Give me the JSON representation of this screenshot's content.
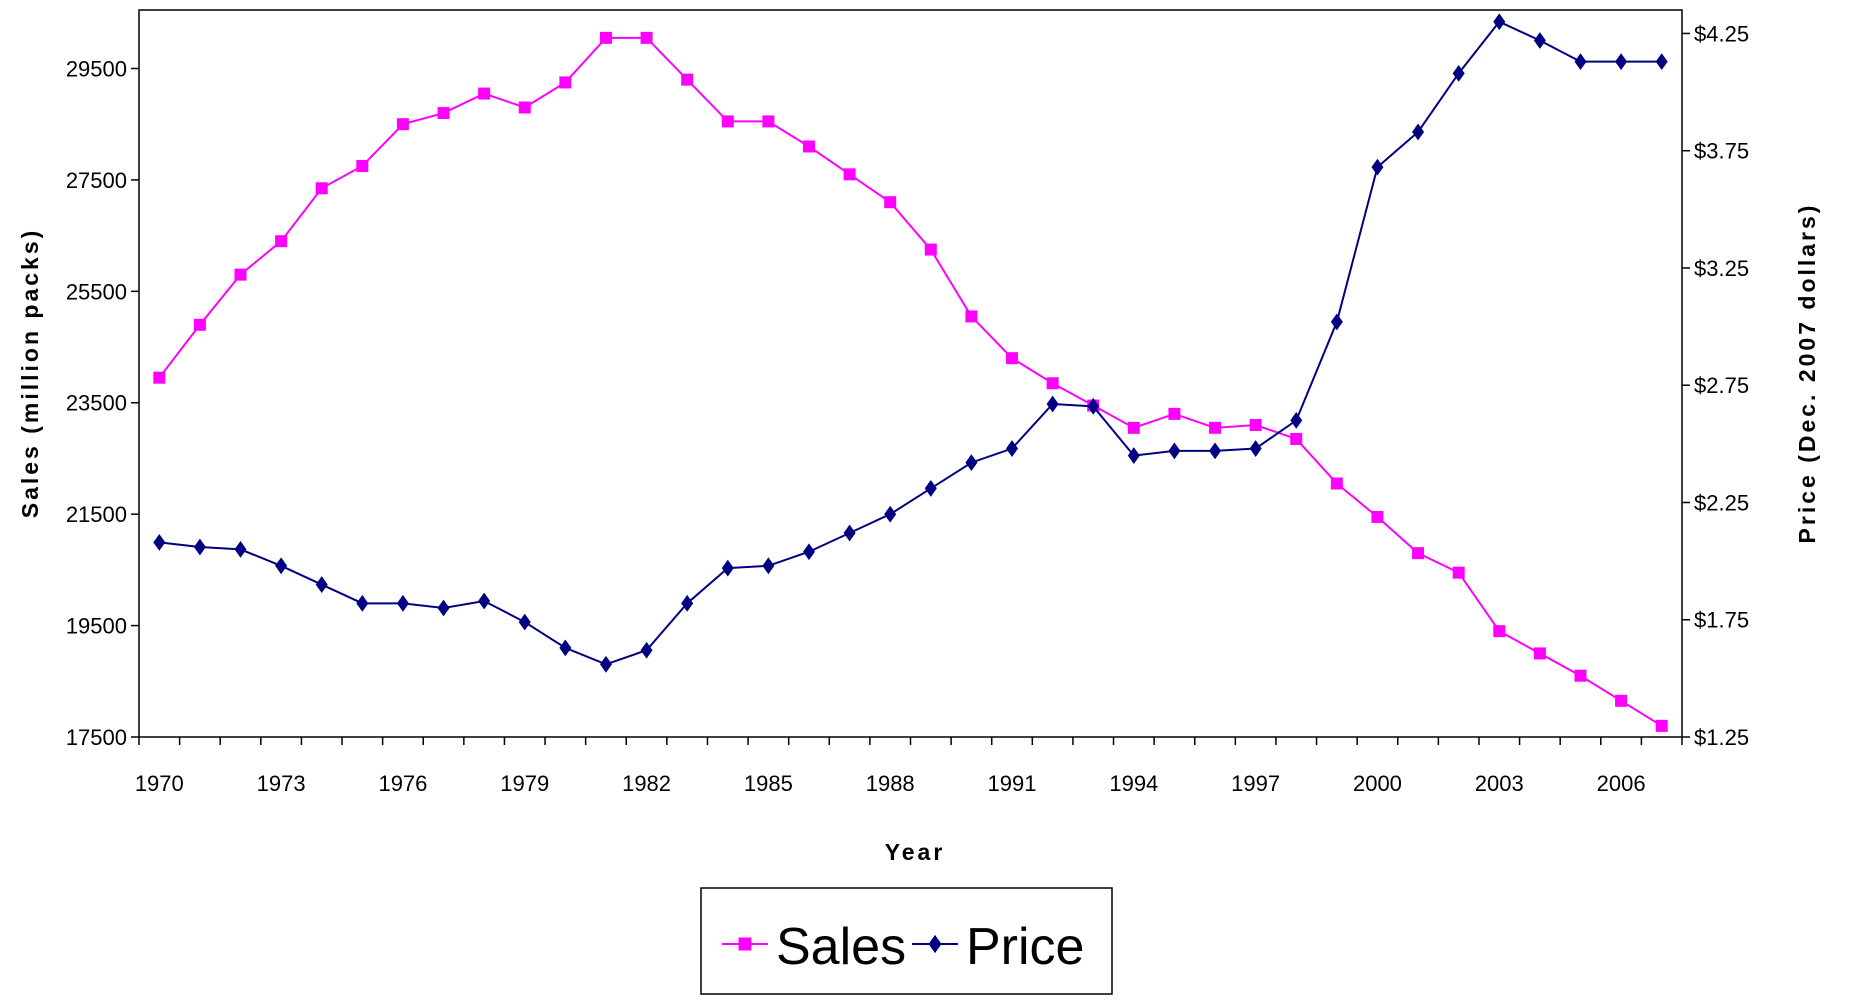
{
  "chart_data": {
    "type": "line",
    "x_label": "Year",
    "y_label": "Sales (million packs)",
    "y2_label": "Price (Dec. 2007 dollars)",
    "categories": [
      "1970",
      null,
      null,
      "1973",
      null,
      null,
      "1976",
      null,
      null,
      "1979",
      null,
      null,
      "1982",
      null,
      null,
      "1985",
      null,
      null,
      "1988",
      null,
      null,
      "1991",
      null,
      null,
      "1994",
      null,
      null,
      "1997",
      null,
      null,
      "2000",
      null,
      null,
      "2003",
      null,
      null,
      "2006",
      null
    ],
    "series": [
      {
        "name": "Sales",
        "color": "#ff00ff",
        "marker": "square",
        "values": [
          23950,
          24900,
          25800,
          26400,
          27350,
          27750,
          28500,
          28700,
          29050,
          28800,
          29250,
          30050,
          30050,
          29300,
          28550,
          28550,
          28100,
          27600,
          27100,
          26250,
          25050,
          24300,
          23850,
          23450,
          23050,
          23300,
          23050,
          23100,
          22850,
          22050,
          21450,
          20800,
          20450,
          19400,
          19000,
          18600,
          18150,
          17700
        ]
      },
      {
        "name": "Price",
        "color": "#000080",
        "marker": "diamond",
        "axis": "y2",
        "values": [
          2.08,
          2.06,
          2.05,
          1.98,
          1.9,
          1.82,
          1.82,
          1.8,
          1.83,
          1.74,
          1.63,
          1.56,
          1.62,
          1.82,
          1.97,
          1.98,
          2.04,
          2.12,
          2.2,
          2.31,
          2.42,
          2.48,
          2.67,
          2.66,
          2.45,
          2.47,
          2.47,
          2.48,
          2.6,
          3.02,
          3.68,
          3.83,
          4.08,
          4.3,
          4.22,
          4.13,
          4.13,
          4.13
        ]
      }
    ],
    "ylim": [
      17500,
      30550
    ],
    "yticks": [
      17500,
      19500,
      21500,
      23500,
      25500,
      27500,
      29500
    ],
    "y2lim": [
      1.25,
      4.35
    ],
    "y2ticks": [
      {
        "value": 1.25,
        "label": "$1.25"
      },
      {
        "value": 1.75,
        "label": "$1.75"
      },
      {
        "value": 2.25,
        "label": "$2.25"
      },
      {
        "value": 2.75,
        "label": "$2.75"
      },
      {
        "value": 3.25,
        "label": "$3.25"
      },
      {
        "value": 3.75,
        "label": "$3.75"
      },
      {
        "value": 4.25,
        "label": "$4.25"
      }
    ],
    "grid": false,
    "legend": "bottom"
  }
}
